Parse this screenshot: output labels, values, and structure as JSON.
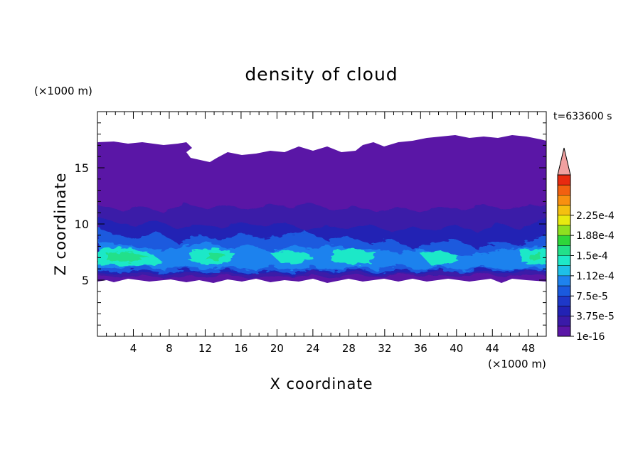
{
  "chart_data": {
    "type": "heatmap",
    "title": "density of cloud",
    "xlabel": "X coordinate",
    "ylabel": "Z coordinate",
    "x_unit": "(×1000 m)",
    "y_unit": "(×1000 m)",
    "time_label": "t=633600 s",
    "xlim": [
      0,
      50
    ],
    "ylim": [
      0,
      20
    ],
    "x_ticks": [
      4,
      8,
      12,
      16,
      20,
      24,
      28,
      32,
      36,
      40,
      44,
      48
    ],
    "y_ticks": [
      5,
      10,
      15
    ],
    "colorbar": {
      "labels": [
        "1e-16",
        "3.75e-5",
        "7.5e-5",
        "1.12e-4",
        "1.5e-4",
        "1.88e-4",
        "2.25e-4"
      ],
      "colors": [
        "#5a16a6",
        "#3a1aa8",
        "#2222b4",
        "#1e38c8",
        "#1a5ade",
        "#1e82ee",
        "#1ec0e8",
        "#1ee8c8",
        "#22e08a",
        "#2ed63a",
        "#8ee020",
        "#e8ea10",
        "#f4c010",
        "#f89010",
        "#f26010",
        "#e82a10"
      ],
      "extend_color": "#f0a0a0"
    },
    "cloud_layers": [
      {
        "level": "1e-16",
        "z_range": [
          5,
          17.5
        ]
      },
      {
        "level": "3.75e-5",
        "z_range": [
          5.5,
          11.5
        ]
      },
      {
        "level": "7.5e-5",
        "z_range": [
          6,
          9
        ]
      },
      {
        "level": "1.12e-4",
        "z_range": [
          6.3,
          8
        ]
      },
      {
        "level": "1.5e-4",
        "z_range": [
          6.8,
          7.4
        ]
      }
    ]
  }
}
